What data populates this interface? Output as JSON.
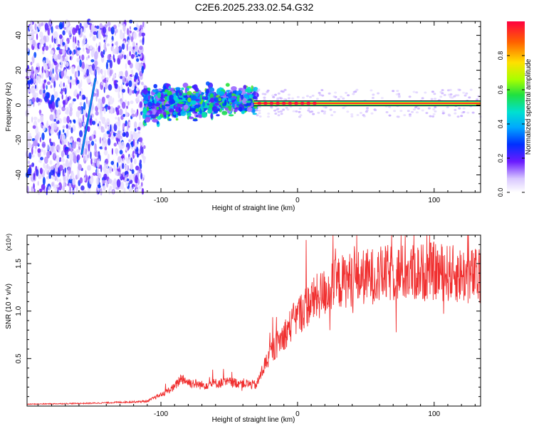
{
  "figure_title": "C2E6.2025.233.02.54.G32",
  "chart_data": [
    {
      "type": "heatmap",
      "xlabel": "Height of straight line (km)",
      "ylabel": "Frequency (Hz)",
      "xlim": [
        -198,
        134
      ],
      "ylim": [
        -50,
        48
      ],
      "xticks": [
        -100,
        0,
        100
      ],
      "yticks": [
        -40,
        -20,
        0,
        20,
        40
      ],
      "colorbar": {
        "label": "Normalized spectral amplitude",
        "range": [
          0,
          1
        ],
        "ticks": [
          "0.0",
          "0.2",
          "0.4",
          "0.6",
          "0.8"
        ]
      },
      "features": [
        {
          "name": "scatter-noise-region",
          "x_range": [
            -198,
            -112
          ],
          "freq_range": [
            -50,
            48
          ],
          "amplitude": 0.15
        },
        {
          "name": "transition-cloud",
          "x_range": [
            -112,
            -30
          ],
          "center_freq": 0,
          "freq_spread": 10,
          "amplitude": 0.45
        },
        {
          "name": "steady-line",
          "x_range": [
            -32,
            134
          ],
          "freq": 1,
          "amplitude": 0.95
        },
        {
          "name": "diagonal-streak",
          "x_start": -158,
          "y_start": -28,
          "x_end": -148,
          "y_end": 15
        }
      ]
    },
    {
      "type": "line",
      "xlabel": "Height of straight line (km)",
      "ylabel": "SNR (10 * v/v)",
      "yscale_label": "(x10⁴)",
      "xlim": [
        -198,
        134
      ],
      "ylim": [
        0,
        1.8
      ],
      "xticks": [
        -100,
        0,
        100
      ],
      "yticks": [
        "0.5",
        "1.0",
        "1.5"
      ],
      "color": "#f03030",
      "envelope": {
        "x": [
          -198,
          -150,
          -110,
          -100,
          -90,
          -85,
          -80,
          -70,
          -60,
          -50,
          -40,
          -30,
          -25,
          -20,
          -15,
          -10,
          -5,
          0,
          10,
          20,
          30,
          40,
          50,
          60,
          70,
          80,
          90,
          100,
          110,
          120,
          134
        ],
        "y": [
          0.02,
          0.03,
          0.05,
          0.12,
          0.2,
          0.3,
          0.25,
          0.22,
          0.24,
          0.25,
          0.24,
          0.22,
          0.4,
          0.55,
          0.65,
          0.75,
          0.85,
          0.95,
          1.1,
          1.2,
          1.3,
          1.34,
          1.36,
          1.38,
          1.4,
          1.4,
          1.41,
          1.42,
          1.4,
          1.38,
          1.36
        ]
      },
      "noise_fraction": 0.22
    }
  ]
}
